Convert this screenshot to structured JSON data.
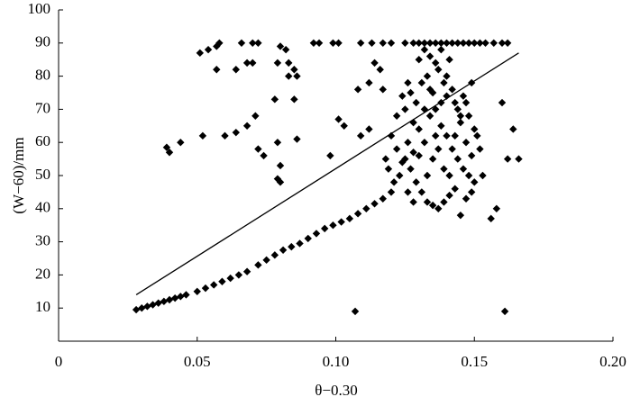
{
  "chart_data": {
    "type": "scatter",
    "x_label": "θ−0.30",
    "y_label": "(W−60)/mm",
    "color": "#000000",
    "xlim": [
      0,
      0.2
    ],
    "xticks": [
      0,
      0.05,
      {
        "value": 0.1,
        "label": "0.10"
      },
      0.15,
      {
        "value": 0.2,
        "label": "0.20"
      }
    ],
    "ylim": [
      0,
      100
    ],
    "yticks": [
      10,
      20,
      30,
      40,
      50,
      60,
      70,
      80,
      90,
      100
    ],
    "grid": false,
    "x": [
      0.028,
      0.03,
      0.032,
      0.034,
      0.036,
      0.038,
      0.04,
      0.042,
      0.044,
      0.046,
      0.05,
      0.053,
      0.056,
      0.059,
      0.062,
      0.065,
      0.068,
      0.072,
      0.075,
      0.078,
      0.081,
      0.084,
      0.087,
      0.09,
      0.093,
      0.096,
      0.099,
      0.102,
      0.105,
      0.108,
      0.111,
      0.114,
      0.117,
      0.12,
      0.051,
      0.054,
      0.057,
      0.058,
      0.066,
      0.07,
      0.072,
      0.08,
      0.082,
      0.092,
      0.094,
      0.099,
      0.101,
      0.109,
      0.113,
      0.117,
      0.12,
      0.125,
      0.128,
      0.13,
      0.132,
      0.134,
      0.136,
      0.138,
      0.14,
      0.142,
      0.144,
      0.146,
      0.148,
      0.15,
      0.152,
      0.154,
      0.157,
      0.16,
      0.162,
      0.057,
      0.064,
      0.068,
      0.07,
      0.079,
      0.083,
      0.085,
      0.086,
      0.083,
      0.078,
      0.085,
      0.071,
      0.068,
      0.064,
      0.06,
      0.052,
      0.044,
      0.04,
      0.039,
      0.072,
      0.074,
      0.079,
      0.086,
      0.08,
      0.079,
      0.08,
      0.098,
      0.101,
      0.103,
      0.109,
      0.112,
      0.108,
      0.112,
      0.114,
      0.116,
      0.117,
      0.107,
      0.161,
      0.16,
      0.164,
      0.166,
      0.162,
      0.156,
      0.158,
      0.153,
      0.125,
      0.127,
      0.129,
      0.131,
      0.133,
      0.135,
      0.137,
      0.139,
      0.141,
      0.143,
      0.145,
      0.147,
      0.149,
      0.12,
      0.122,
      0.124,
      0.126,
      0.128,
      0.13,
      0.132,
      0.134,
      0.136,
      0.138,
      0.14,
      0.142,
      0.144,
      0.146,
      0.148,
      0.15,
      0.125,
      0.127,
      0.129,
      0.131,
      0.133,
      0.135,
      0.137,
      0.139,
      0.141,
      0.143,
      0.145,
      0.147,
      0.149,
      0.151,
      0.13,
      0.132,
      0.134,
      0.136,
      0.138,
      0.14,
      0.142,
      0.144,
      0.146,
      0.148,
      0.15,
      0.152,
      0.121,
      0.123,
      0.119,
      0.118,
      0.126,
      0.128,
      0.133,
      0.135,
      0.137,
      0.139,
      0.141,
      0.143,
      0.145,
      0.147,
      0.149,
      0.136,
      0.138,
      0.14,
      0.134,
      0.132,
      0.13,
      0.128,
      0.126,
      0.124,
      0.122
    ],
    "values": [
      9.5,
      10,
      10.5,
      11,
      11.5,
      12,
      12.5,
      13,
      13.5,
      14,
      15,
      16,
      17,
      18,
      19,
      20,
      21,
      23,
      24.5,
      26,
      27.5,
      28.5,
      29.5,
      31,
      32.5,
      34,
      35,
      36,
      37,
      38.5,
      40,
      41.5,
      43,
      45,
      87,
      88,
      89,
      90,
      90,
      90,
      90,
      89,
      88,
      90,
      90,
      90,
      90,
      90,
      90,
      90,
      90,
      90,
      90,
      90,
      90,
      90,
      90,
      90,
      90,
      90,
      90,
      90,
      90,
      90,
      90,
      90,
      90,
      90,
      90,
      82,
      82,
      84,
      84,
      84,
      84,
      82,
      80,
      80,
      73,
      73,
      68,
      65,
      63,
      62,
      62,
      60,
      57,
      58.5,
      58,
      56,
      60,
      61,
      53,
      49,
      48,
      56,
      67,
      65,
      62,
      64,
      76,
      78,
      84,
      82,
      76,
      9,
      9,
      72,
      64,
      55,
      55,
      37,
      40,
      50,
      55,
      52,
      48,
      45,
      42,
      41,
      40,
      42,
      44,
      46,
      38,
      43,
      45,
      62,
      58,
      54,
      60,
      57,
      64,
      60,
      68,
      70,
      65,
      62,
      58,
      55,
      52,
      50,
      48,
      70,
      75,
      72,
      78,
      80,
      75,
      82,
      78,
      85,
      72,
      66,
      60,
      56,
      62,
      85,
      88,
      86,
      84,
      88,
      80,
      76,
      70,
      74,
      68,
      64,
      58,
      48,
      50,
      52,
      55,
      45,
      42,
      50,
      55,
      58,
      52,
      50,
      62,
      68,
      72,
      78,
      62,
      72,
      74,
      76,
      70,
      56,
      66,
      78,
      74,
      68
    ],
    "trend_line": {
      "x": [
        0.028,
        0.166
      ],
      "values": [
        14,
        87
      ]
    }
  }
}
